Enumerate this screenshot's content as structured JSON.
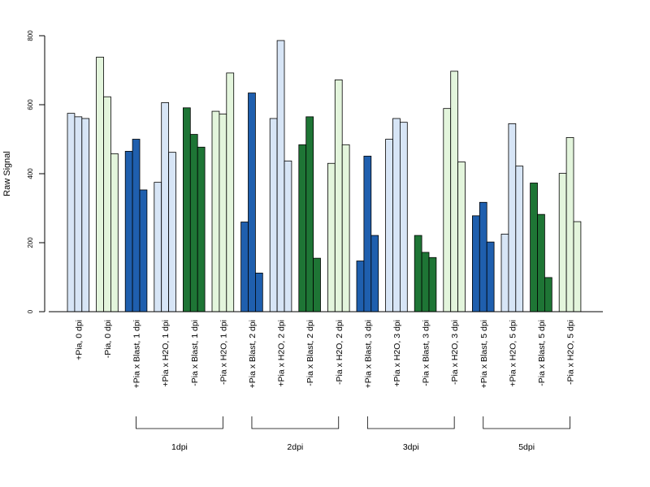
{
  "chart_data": {
    "type": "bar",
    "ylabel": "Raw Signal",
    "xlabel": "",
    "ylim": [
      0,
      800
    ],
    "yticks": [
      "0",
      "200",
      "400",
      "600",
      "800"
    ],
    "colors": {
      "light_blue": "#d7e5f6",
      "light_green": "#e3f5dc",
      "dark_blue": "#1f5fae",
      "dark_green": "#1e7535"
    },
    "categories": [
      "+Pia, 0 dpi",
      "-Pia, 0 dpi",
      "+Pia x Blast, 1 dpi",
      "+Pia x H2O, 1 dpi",
      "-Pia x Blast, 1 dpi",
      "-Pia x H2O, 1 dpi",
      "+Pia x Blast, 2 dpi",
      "+Pia x H2O, 2 dpi",
      "-Pia x Blast, 2 dpi",
      "-Pia x H2O, 2 dpi",
      "+Pia x Blast, 3 dpi",
      "+Pia x H2O, 3 dpi",
      "-Pia x Blast, 3 dpi",
      "-Pia x H2O, 3 dpi",
      "+Pia x Blast, 5 dpi",
      "+Pia x H2O, 5 dpi",
      "-Pia x Blast, 5 dpi",
      "-Pia x H2O, 5 dpi"
    ],
    "category_colors": [
      "light_blue",
      "light_green",
      "dark_blue",
      "light_blue",
      "dark_green",
      "light_green",
      "dark_blue",
      "light_blue",
      "dark_green",
      "light_green",
      "dark_blue",
      "light_blue",
      "dark_green",
      "light_green",
      "dark_blue",
      "light_blue",
      "dark_green",
      "light_green"
    ],
    "values": [
      [
        575,
        565,
        560
      ],
      [
        738,
        623,
        458
      ],
      [
        465,
        500,
        353
      ],
      [
        375,
        606,
        462
      ],
      [
        591,
        514,
        477
      ],
      [
        581,
        573,
        692
      ],
      [
        260,
        634,
        112
      ],
      [
        560,
        786,
        437
      ],
      [
        484,
        565,
        155
      ],
      [
        430,
        672,
        484
      ],
      [
        147,
        451,
        221
      ],
      [
        500,
        560,
        549
      ],
      [
        221,
        172,
        157
      ],
      [
        589,
        697,
        434
      ],
      [
        278,
        317,
        202
      ],
      [
        225,
        545,
        422
      ],
      [
        373,
        282,
        99
      ],
      [
        401,
        505,
        261
      ]
    ],
    "groups": [
      {
        "label": "1dpi",
        "from": 2,
        "to": 5
      },
      {
        "label": "2dpi",
        "from": 6,
        "to": 9
      },
      {
        "label": "3dpi",
        "from": 10,
        "to": 13
      },
      {
        "label": "5dpi",
        "from": 14,
        "to": 17
      }
    ]
  }
}
